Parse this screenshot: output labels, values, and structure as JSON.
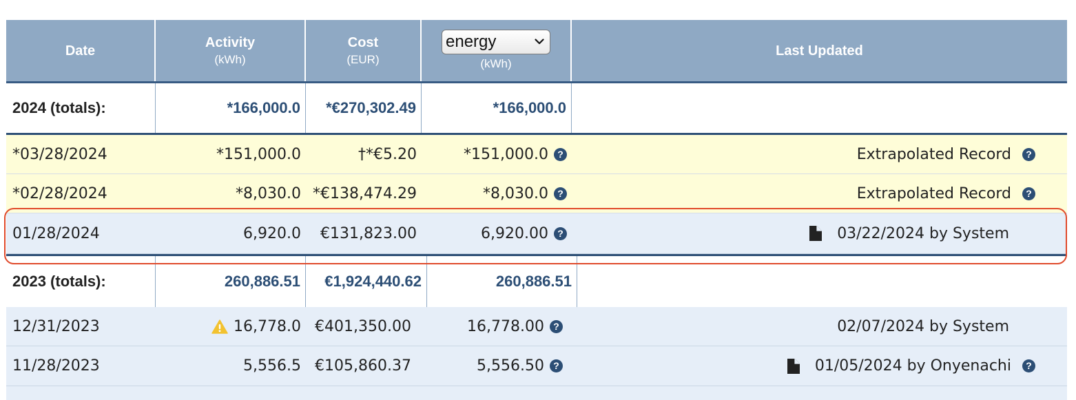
{
  "header": {
    "date": "Date",
    "activity": "Activity",
    "activity_unit": "(kWh)",
    "cost": "Cost",
    "cost_unit": "(EUR)",
    "metric_select": "energy",
    "metric_unit": "(kWh)",
    "last_updated": "Last Updated"
  },
  "totals_2024": {
    "label": "2024 (totals):",
    "activity": "*166,000.0",
    "cost": "*€270,302.49",
    "metric": "*166,000.0"
  },
  "rows_2024": [
    {
      "date": "*03/28/2024",
      "activity": "*151,000.0",
      "cost": "†*€5.20",
      "metric": "*151,000.0",
      "updated": "Extrapolated Record"
    },
    {
      "date": "*02/28/2024",
      "activity": "*8,030.0",
      "cost": "*€138,474.29",
      "metric": "*8,030.0",
      "updated": "Extrapolated Record"
    },
    {
      "date": "01/28/2024",
      "activity": "6,920.0",
      "cost": "€131,823.00",
      "metric": "6,920.00",
      "updated": "03/22/2024 by System"
    }
  ],
  "totals_2023": {
    "label": "2023 (totals):",
    "activity": "260,886.51",
    "cost": "€1,924,440.62",
    "metric": "260,886.51"
  },
  "rows_2023": [
    {
      "date": "12/31/2023",
      "activity": "16,778.0",
      "cost": "€401,350.00",
      "metric": "16,778.00",
      "updated": "02/07/2024 by System"
    },
    {
      "date": "11/28/2023",
      "activity": "5,556.5",
      "cost": "€105,860.37",
      "metric": "5,556.50",
      "updated": "01/05/2024 by Onyenachi"
    }
  ],
  "icons": {
    "help": "?",
    "chevron": "⌄"
  },
  "colors": {
    "header_bg": "#8fa9c4",
    "accent": "#2c4e75",
    "extrapolated_row": "#fefdd8",
    "data_row": "#e6eef8",
    "highlight": "#e0492a",
    "warning": "#f2c230"
  }
}
